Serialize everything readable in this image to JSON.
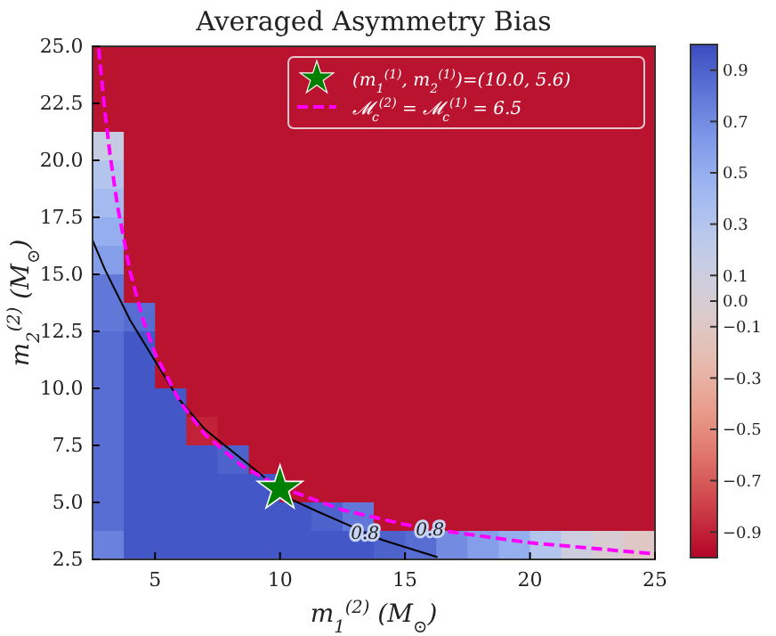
{
  "chart_data": {
    "type": "heatmap",
    "title": "Averaged Asymmetry Bias",
    "xlabel": "m$_{1}$$^{(2)}$ (M$_{⊙}$)",
    "ylabel": "m$_{2}$$^{(2)}$ (M$_{⊙}$)",
    "cells": [
      [
        -0.95,
        -0.95,
        -0.95,
        -0.95,
        -0.95,
        -0.95,
        -0.95,
        -0.95,
        -0.95,
        -0.95,
        -0.95,
        -0.95,
        -0.95,
        -0.95,
        -0.95,
        -0.95,
        -0.95,
        -0.95
      ],
      [
        -0.95,
        -0.95,
        -0.95,
        -0.95,
        -0.95,
        -0.95,
        -0.95,
        -0.95,
        -0.95,
        -0.95,
        -0.95,
        -0.95,
        -0.95,
        -0.95,
        -0.95,
        -0.95,
        -0.95,
        -0.95
      ],
      [
        -0.95,
        -0.95,
        -0.95,
        -0.95,
        -0.95,
        -0.95,
        -0.95,
        -0.95,
        -0.95,
        -0.95,
        -0.95,
        -0.95,
        -0.95,
        -0.95,
        -0.95,
        -0.95,
        -0.95,
        -0.95
      ],
      [
        0.15,
        -0.95,
        -0.95,
        -0.95,
        -0.95,
        -0.95,
        -0.95,
        -0.95,
        -0.95,
        -0.95,
        -0.95,
        -0.95,
        -0.95,
        -0.95,
        -0.95,
        -0.95,
        -0.95,
        -0.95
      ],
      [
        0.3,
        -0.95,
        -0.95,
        -0.95,
        -0.95,
        -0.95,
        -0.95,
        -0.95,
        -0.95,
        -0.95,
        -0.95,
        -0.95,
        -0.95,
        -0.95,
        -0.95,
        -0.95,
        -0.95,
        -0.95
      ],
      [
        0.4,
        -0.95,
        -0.95,
        -0.95,
        -0.95,
        -0.95,
        -0.95,
        -0.95,
        -0.95,
        -0.95,
        -0.95,
        -0.95,
        -0.95,
        -0.95,
        -0.95,
        -0.95,
        -0.95,
        -0.95
      ],
      [
        0.5,
        -0.95,
        -0.95,
        -0.95,
        -0.95,
        -0.95,
        -0.95,
        -0.95,
        -0.95,
        -0.95,
        -0.95,
        -0.95,
        -0.95,
        -0.95,
        -0.95,
        -0.95,
        -0.95,
        -0.95
      ],
      [
        0.6,
        -0.95,
        -0.95,
        -0.95,
        -0.95,
        -0.95,
        -0.95,
        -0.95,
        -0.95,
        -0.95,
        -0.95,
        -0.95,
        -0.95,
        -0.95,
        -0.95,
        -0.95,
        -0.95,
        -0.95
      ],
      [
        0.8,
        -0.95,
        -0.95,
        -0.95,
        -0.95,
        -0.95,
        -0.95,
        -0.95,
        -0.95,
        -0.95,
        -0.95,
        -0.95,
        -0.95,
        -0.95,
        -0.95,
        -0.95,
        -0.95,
        -0.95
      ],
      [
        0.8,
        0.85,
        -0.95,
        -0.95,
        -0.95,
        -0.95,
        -0.95,
        -0.95,
        -0.95,
        -0.95,
        -0.95,
        -0.95,
        -0.95,
        -0.95,
        -0.95,
        -0.95,
        -0.95,
        -0.95
      ],
      [
        0.85,
        0.95,
        -0.95,
        -0.95,
        -0.95,
        -0.95,
        -0.95,
        -0.95,
        -0.95,
        -0.95,
        -0.95,
        -0.95,
        -0.95,
        -0.95,
        -0.95,
        -0.95,
        -0.95,
        -0.95
      ],
      [
        0.85,
        0.95,
        -0.95,
        -0.95,
        -0.95,
        -0.95,
        -0.95,
        -0.95,
        -0.95,
        -0.95,
        -0.95,
        -0.95,
        -0.95,
        -0.95,
        -0.95,
        -0.95,
        -0.95,
        -0.95
      ],
      [
        0.85,
        0.95,
        0.95,
        -0.95,
        -0.95,
        -0.95,
        -0.95,
        -0.95,
        -0.95,
        -0.95,
        -0.95,
        -0.95,
        -0.95,
        -0.95,
        -0.95,
        -0.95,
        -0.95,
        -0.95
      ],
      [
        0.85,
        0.95,
        0.95,
        -0.9,
        -0.95,
        -0.95,
        -0.95,
        -0.95,
        -0.95,
        -0.95,
        -0.95,
        -0.95,
        -0.95,
        -0.95,
        -0.95,
        -0.95,
        -0.95,
        -0.95
      ],
      [
        0.85,
        0.95,
        0.95,
        0.95,
        0.9,
        -0.95,
        -0.95,
        -0.95,
        -0.95,
        -0.95,
        -0.95,
        -0.95,
        -0.95,
        -0.95,
        -0.95,
        -0.95,
        -0.95,
        -0.95
      ],
      [
        0.85,
        0.95,
        0.95,
        0.95,
        0.95,
        0.95,
        -0.95,
        -0.95,
        -0.95,
        -0.95,
        -0.95,
        -0.95,
        -0.95,
        -0.95,
        -0.95,
        -0.95,
        -0.95,
        -0.95
      ],
      [
        0.85,
        0.95,
        0.95,
        0.95,
        0.95,
        0.95,
        0.95,
        0.9,
        0.8,
        -0.95,
        -0.95,
        -0.95,
        -0.95,
        -0.95,
        -0.95,
        -0.95,
        -0.95,
        -0.95
      ],
      [
        0.75,
        0.95,
        0.95,
        0.95,
        0.95,
        0.95,
        0.95,
        0.95,
        0.95,
        0.9,
        0.85,
        0.7,
        0.6,
        0.5,
        0.3,
        0.1,
        0.0,
        -0.1
      ]
    ],
    "xlim": [
      2.5,
      25
    ],
    "xticks": [
      5,
      10,
      15,
      20,
      25
    ],
    "ylim": [
      2.5,
      25
    ],
    "yticks": [
      2.5,
      {
        "value": 5,
        "label": "5.0"
      },
      7.5,
      {
        "value": 10,
        "label": "10.0"
      },
      12.5,
      {
        "value": 15,
        "label": "15.0"
      },
      17.5,
      {
        "value": 20,
        "label": "20.0"
      },
      22.5,
      {
        "value": 25,
        "label": "25.0"
      }
    ],
    "clim": [
      -1,
      1
    ],
    "cticks": [
      0.9,
      0.7,
      0.5,
      0.3,
      0.1,
      {
        "value": 0,
        "label": "0.0"
      },
      {
        "value": -0.1,
        "label": "−0.1"
      },
      {
        "value": -0.3,
        "label": "−0.3"
      },
      {
        "value": -0.5,
        "label": "−0.5"
      },
      {
        "value": -0.7,
        "label": "−0.7"
      },
      {
        "value": -0.9,
        "label": "−0.9"
      }
    ],
    "series": [
      {
        "type": "line",
        "color": "#000000",
        "x": [
          2.5,
          3.0,
          3.66,
          4.0,
          5.0,
          5.9,
          7.0,
          8.7,
          10.5,
          11.5,
          12.75,
          13.4,
          14.1,
          16.3
        ],
        "values": [
          16.5,
          15.2,
          13.75,
          13.0,
          11.2,
          9.6,
          8.2,
          6.7,
          5.1,
          4.6,
          4.0,
          3.68,
          3.35,
          2.6
        ]
      },
      {
        "type": "line",
        "name": "𝓜$_{c}$$^{(2)}$ = 𝓜$_{c}$$^{(1)}$ = 6.5",
        "color": "#ff00ff",
        "line_style": "dashed",
        "x": [
          2.75,
          2.8,
          3.0,
          3.2,
          3.5,
          4.0,
          4.5,
          5.0,
          6.0,
          7.0,
          8.5,
          10.0,
          12.5,
          15.0,
          16.0,
          20.0,
          25.0
        ],
        "values": [
          24.9,
          24.28,
          22.09,
          20.25,
          17.98,
          15.14,
          13.08,
          11.53,
          9.4,
          7.97,
          6.58,
          5.67,
          4.67,
          4.03,
          3.83,
          3.23,
          2.74
        ]
      },
      {
        "type": "scatter",
        "name": "(m$_{1}$$^{(1)}$, m$_{2}$$^{(1)}$)=(10.0, 5.6)",
        "color": "#008000",
        "marker": "star",
        "x": [
          10.0
        ],
        "values": [
          5.6
        ]
      }
    ],
    "annotations": [
      {
        "text": "0.8",
        "x": 13.4,
        "y": 3.68
      },
      {
        "text": "0.8",
        "x": 16.0,
        "y": 3.83
      }
    ],
    "legend": "top right"
  }
}
